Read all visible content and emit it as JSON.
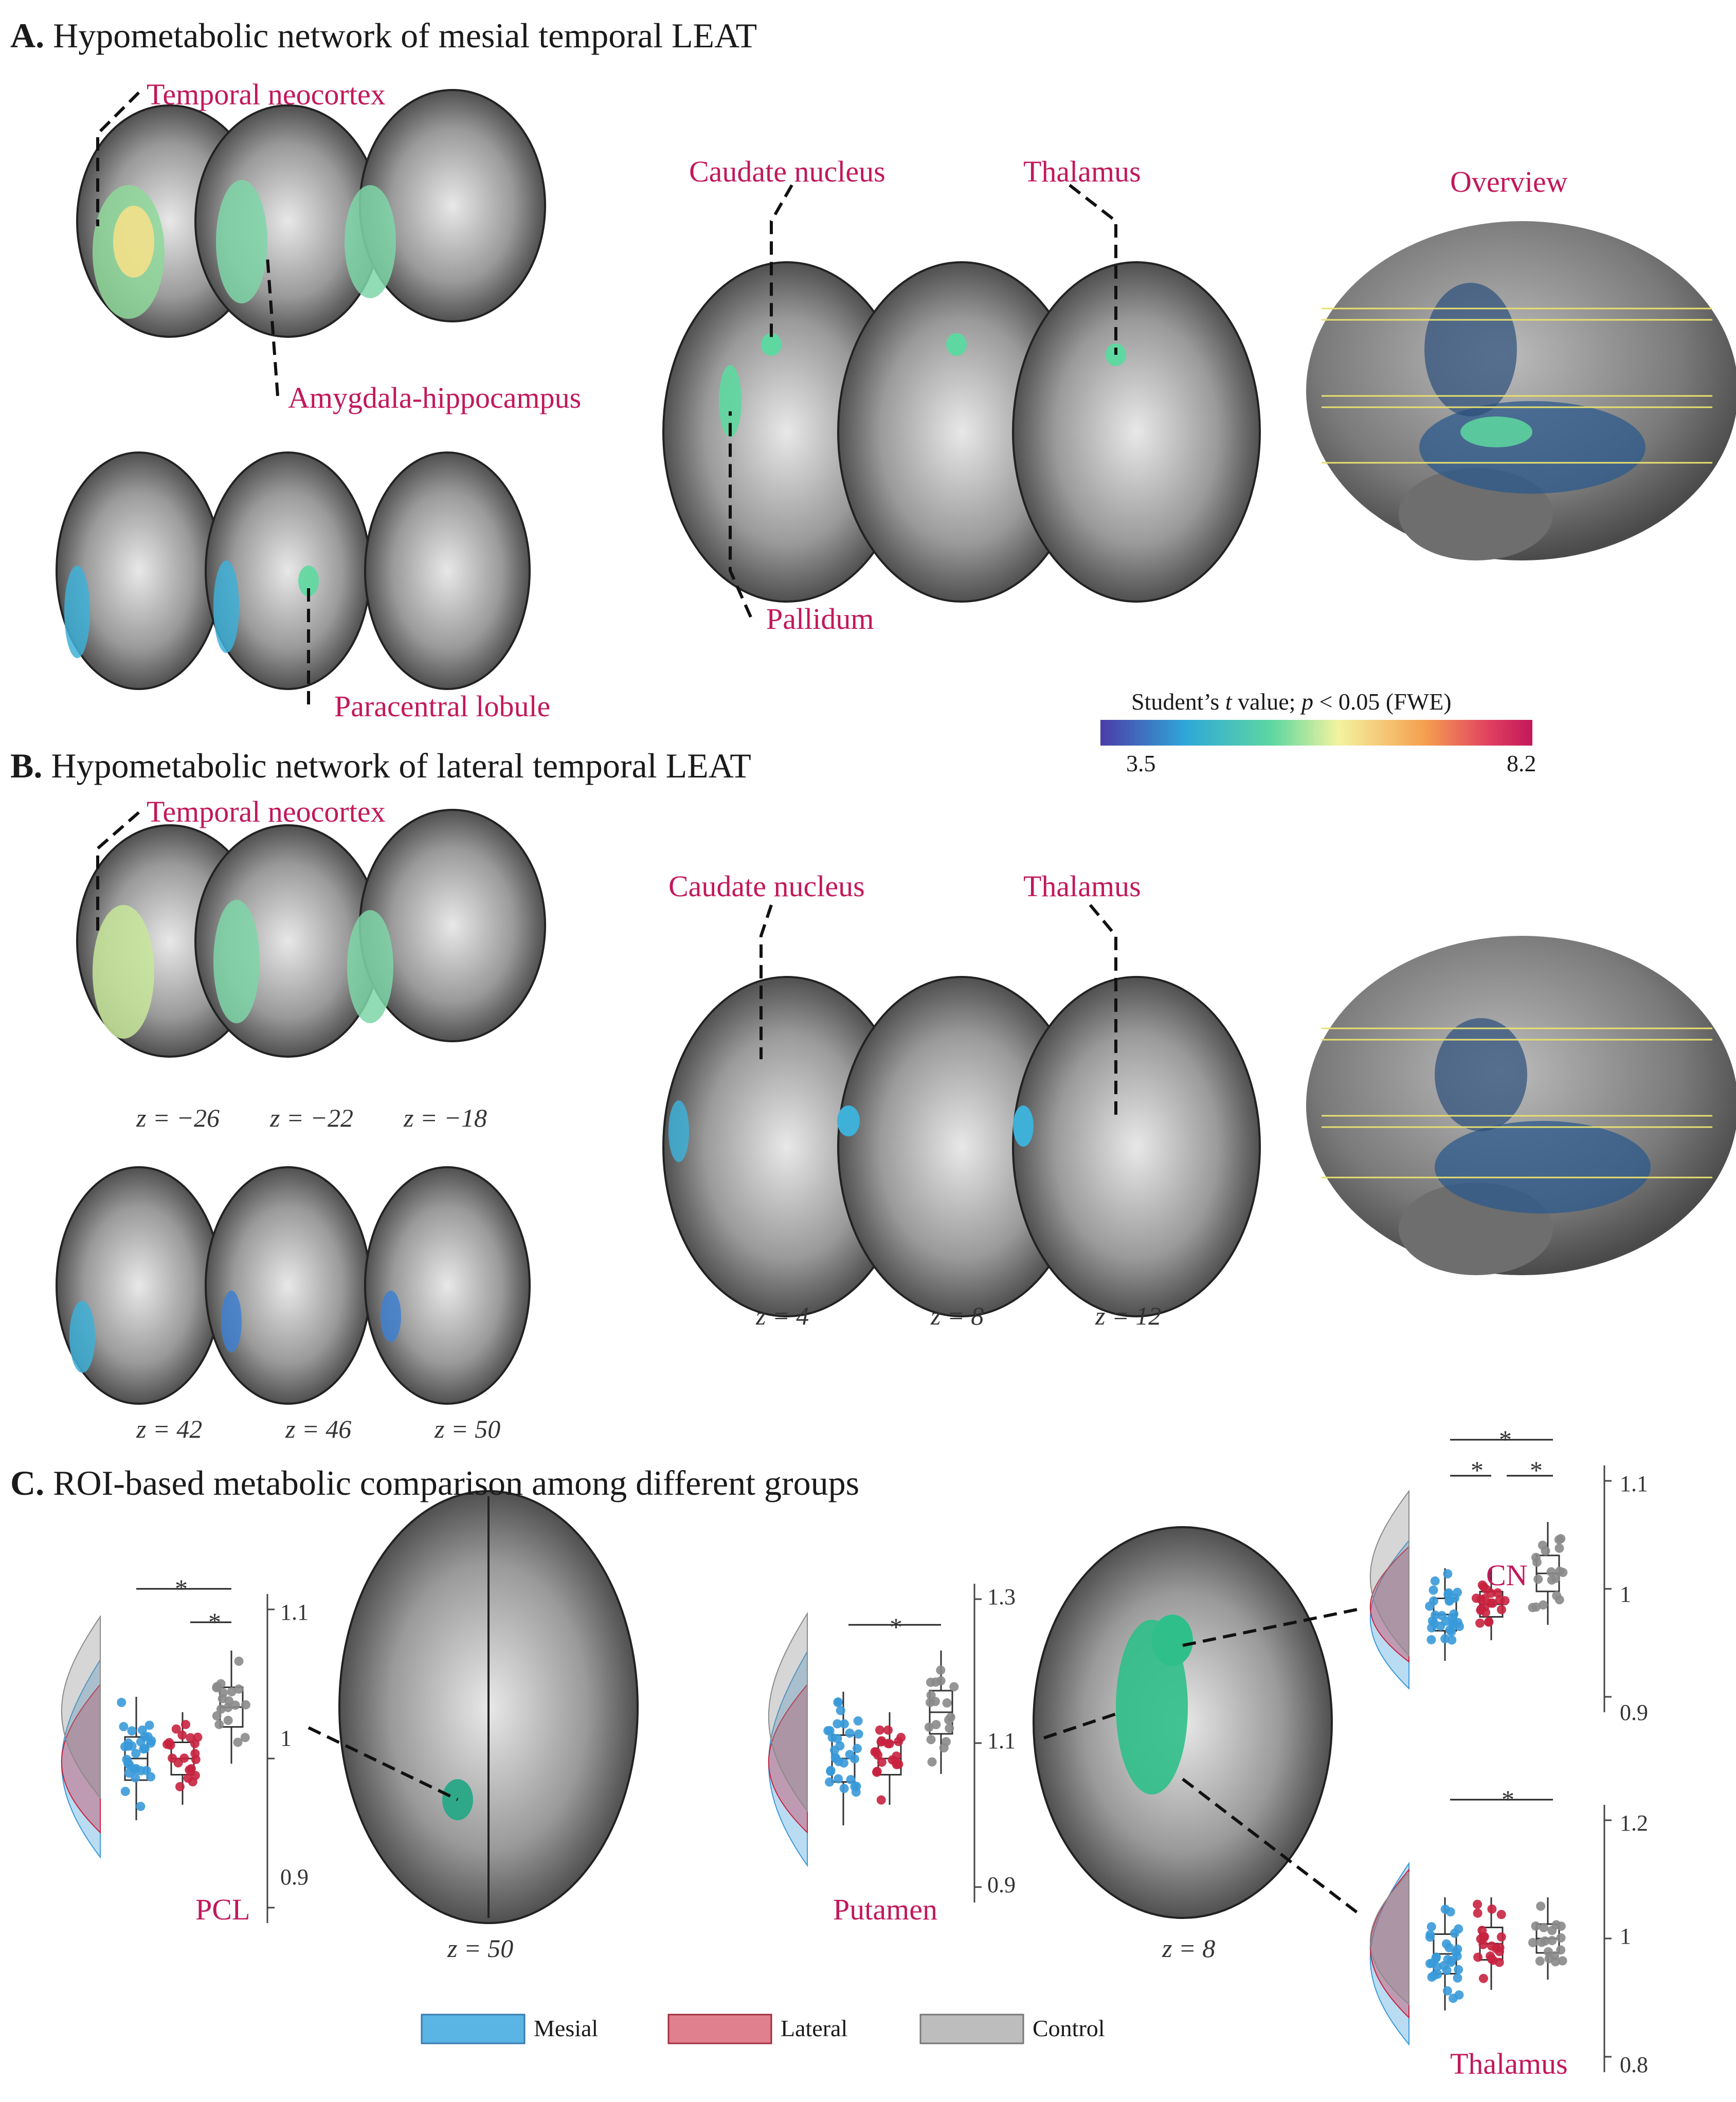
{
  "panelA": {
    "letter": "A.",
    "title": "Hypometabolic network of mesial temporal LEAT",
    "labels": {
      "temporal_neocortex": "Temporal neocortex",
      "amygdala_hippocampus": "Amygdala-hippocampus",
      "paracentral_lobule": "Paracentral lobule",
      "caudate_nucleus": "Caudate nucleus",
      "thalamus": "Thalamus",
      "pallidum": "Pallidum",
      "overview": "Overview"
    }
  },
  "colorbar": {
    "title_pre": "Student’s ",
    "title_t": "t",
    "title_mid": " value; ",
    "title_p": "p",
    "title_post": " < 0.05 (FWE)",
    "min": "3.5",
    "max": "8.2",
    "colors": [
      "#4b3ca8",
      "#2fa8d8",
      "#5ed8a0",
      "#f3f3a0",
      "#f5a050",
      "#e04060",
      "#c2185b"
    ]
  },
  "panelB": {
    "letter": "B.",
    "title": "Hypometabolic network of lateral temporal LEAT",
    "labels": {
      "temporal_neocortex": "Temporal neocortex",
      "caudate_nucleus": "Caudate nucleus",
      "thalamus": "Thalamus"
    },
    "z_labels_row1": [
      "z = −26",
      "z = −22",
      "z = −18"
    ],
    "z_labels_row2": [
      "z = 42",
      "z = 46",
      "z = 50"
    ],
    "z_labels_mid": [
      "z = 4",
      "z = 8",
      "z = 12"
    ]
  },
  "panelC": {
    "letter": "C.",
    "title": "ROI-based metabolic comparison among different groups",
    "z_labels": [
      "z = 50",
      "z = 8"
    ],
    "legend": [
      {
        "name": "Mesial",
        "color": "#3a9ad9"
      },
      {
        "name": "Lateral",
        "color": "#c8223f"
      },
      {
        "name": "Control",
        "color": "#8a8a8a"
      }
    ],
    "plots": {
      "pcl": {
        "name": "PCL",
        "ticks": [
          "1.1",
          "1",
          "0.9"
        ],
        "sig": [
          "*",
          "*"
        ]
      },
      "putamen": {
        "name": "Putamen",
        "ticks": [
          "1.3",
          "1.1",
          "0.9"
        ],
        "sig": [
          "*"
        ]
      },
      "cn": {
        "name": "CN",
        "ticks": [
          "1.1",
          "1",
          "0.9"
        ],
        "sig": [
          "*",
          "*",
          "*"
        ]
      },
      "thalamus": {
        "name": "Thalamus",
        "ticks": [
          "1.2",
          "1",
          "0.8"
        ],
        "sig": [
          "*"
        ]
      }
    }
  }
}
